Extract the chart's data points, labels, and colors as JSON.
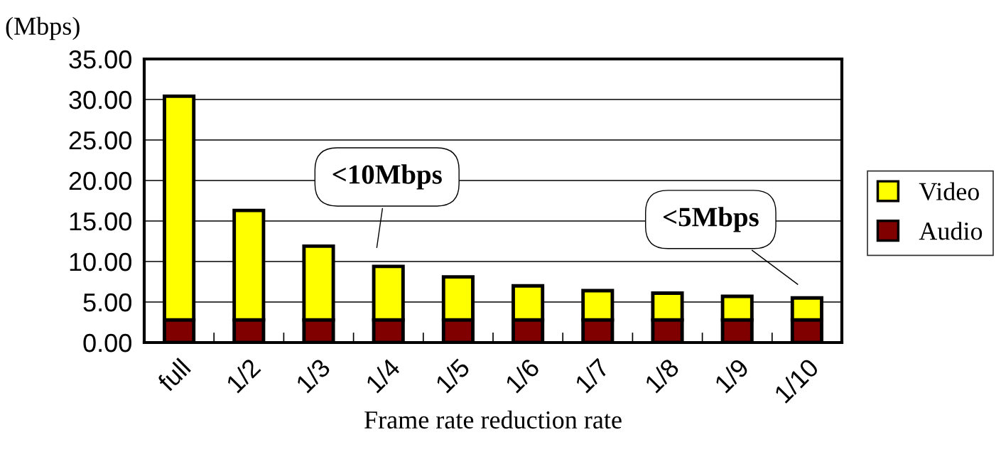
{
  "chart_data": {
    "type": "bar",
    "stacked": true,
    "ylabel": "(Mbps)",
    "xlabel": "Frame rate reduction rate",
    "categories": [
      "full",
      "1/2",
      "1/3",
      "1/4",
      "1/5",
      "1/6",
      "1/7",
      "1/8",
      "1/9",
      "1/10"
    ],
    "series": [
      {
        "name": "Audio",
        "color": "#800000",
        "values": [
          2.8,
          2.8,
          2.8,
          2.8,
          2.8,
          2.8,
          2.8,
          2.8,
          2.8,
          2.8
        ]
      },
      {
        "name": "Video",
        "color": "#ffff00",
        "values": [
          27.6,
          13.5,
          9.1,
          6.6,
          5.3,
          4.2,
          3.6,
          3.3,
          2.9,
          2.7
        ]
      }
    ],
    "ylim": [
      0,
      35
    ],
    "yticks": [
      {
        "value": 0,
        "label": "0.00"
      },
      {
        "value": 5,
        "label": "5.00"
      },
      {
        "value": 10,
        "label": "10.00"
      },
      {
        "value": 15,
        "label": "15.00"
      },
      {
        "value": 20,
        "label": "20.00"
      },
      {
        "value": 25,
        "label": "25.00"
      },
      {
        "value": 30,
        "label": "30.00"
      },
      {
        "value": 35,
        "label": "35.00"
      }
    ],
    "grid": "y",
    "legend": "right",
    "annotations": [
      "<10Mbps",
      "<5Mbps"
    ]
  }
}
